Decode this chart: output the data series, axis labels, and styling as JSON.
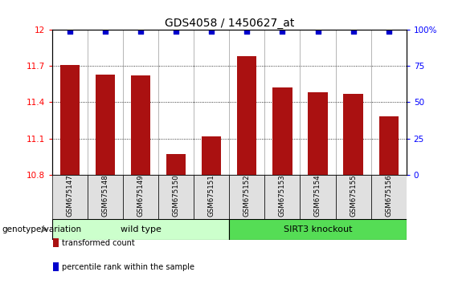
{
  "title": "GDS4058 / 1450627_at",
  "samples": [
    "GSM675147",
    "GSM675148",
    "GSM675149",
    "GSM675150",
    "GSM675151",
    "GSM675152",
    "GSM675153",
    "GSM675154",
    "GSM675155",
    "GSM675156"
  ],
  "bar_values": [
    11.71,
    11.63,
    11.62,
    10.97,
    11.12,
    11.78,
    11.52,
    11.48,
    11.47,
    11.28
  ],
  "bar_color": "#AA1111",
  "dot_color": "#0000CC",
  "ylim_left": [
    10.8,
    12.0
  ],
  "ylim_right": [
    0,
    100
  ],
  "yticks_left": [
    10.8,
    11.1,
    11.4,
    11.7,
    12.0
  ],
  "yticks_right": [
    0,
    25,
    50,
    75,
    100
  ],
  "ytick_labels_left": [
    "10.8",
    "11.1",
    "11.4",
    "11.7",
    "12"
  ],
  "ytick_labels_right": [
    "0",
    "25",
    "50",
    "75",
    "100%"
  ],
  "groups": [
    {
      "label": "wild type",
      "start": 0,
      "end": 4,
      "color": "#ccffcc"
    },
    {
      "label": "SIRT3 knockout",
      "start": 5,
      "end": 9,
      "color": "#55dd55"
    }
  ],
  "group_row_label": "genotype/variation",
  "legend_items": [
    {
      "color": "#AA1111",
      "label": "transformed count"
    },
    {
      "color": "#0000CC",
      "label": "percentile rank within the sample"
    }
  ],
  "title_fontsize": 10,
  "tick_fontsize": 7.5,
  "bar_width": 0.55,
  "dot_percentile": 0.99
}
